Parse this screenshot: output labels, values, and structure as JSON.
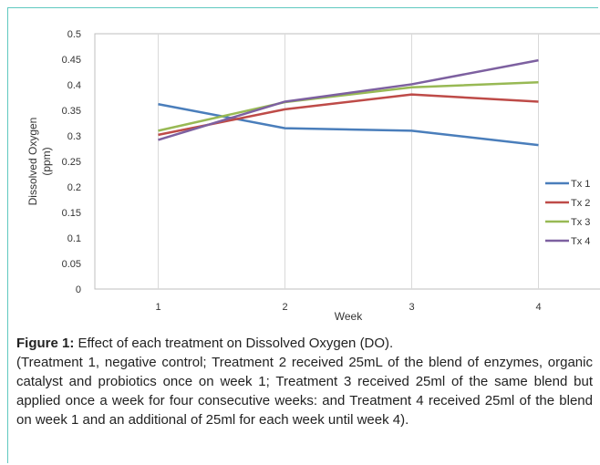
{
  "chart_data": {
    "type": "line",
    "categories": [
      "1",
      "2",
      "3",
      "4"
    ],
    "series": [
      {
        "name": "Tx 1",
        "color": "#4a7ebb",
        "values": [
          0.362,
          0.315,
          0.31,
          0.282
        ]
      },
      {
        "name": "Tx 2",
        "color": "#be4b48",
        "values": [
          0.302,
          0.352,
          0.381,
          0.367
        ]
      },
      {
        "name": "Tx 3",
        "color": "#98b954",
        "values": [
          0.31,
          0.366,
          0.395,
          0.405
        ]
      },
      {
        "name": "Tx 4",
        "color": "#7d60a0",
        "values": [
          0.292,
          0.367,
          0.401,
          0.448
        ]
      }
    ],
    "xlabel": "Week",
    "ylabel": "Dissolved Oxygen (ppm)",
    "ylabel_lines": [
      "Dissolved Oxygen",
      "(ppm)"
    ],
    "ylim": [
      0,
      0.5
    ],
    "yticks": [
      "0",
      "0.05",
      "0.1",
      "0.15",
      "0.2",
      "0.25",
      "0.3",
      "0.35",
      "0.4",
      "0.45",
      "0.5"
    ],
    "grid": "vertical",
    "legend": "right"
  },
  "caption": {
    "label": "Figure 1:",
    "title": " Effect of each treatment on Dissolved Oxygen (DO).",
    "description": "(Treatment 1, negative control; Treatment 2 received 25mL of the blend of enzymes, organic catalyst and probiotics once on week 1; Treatment 3 received 25ml of the same blend but applied once a week for four consecutive weeks: and Treatment 4 received 25ml of the blend on week 1 and an additional of 25ml for each week until week 4)."
  },
  "colors": {
    "frame": "#5fc9c0"
  }
}
